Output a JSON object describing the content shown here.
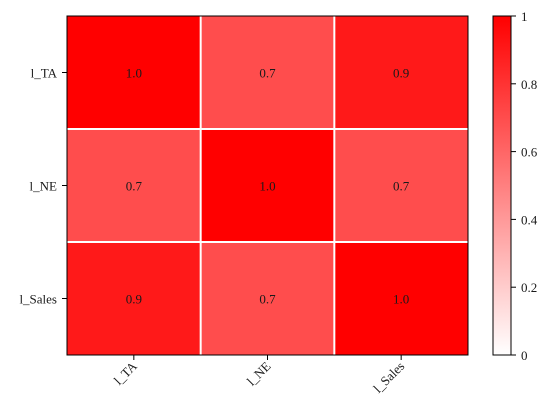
{
  "chart_data": {
    "type": "heatmap",
    "title": "",
    "xlabel": "",
    "ylabel": "",
    "x_categories": [
      "l_TA",
      "l_NE",
      "l_Sales"
    ],
    "y_categories": [
      "l_TA",
      "l_NE",
      "l_Sales"
    ],
    "values": [
      [
        1.0,
        0.7,
        0.9
      ],
      [
        0.7,
        1.0,
        0.7
      ],
      [
        0.9,
        0.7,
        1.0
      ]
    ],
    "cell_labels": [
      [
        "1.0",
        "0.7",
        "0.9"
      ],
      [
        "0.7",
        "1.0",
        "0.7"
      ],
      [
        "0.9",
        "0.7",
        "1.0"
      ]
    ],
    "colorbar": {
      "range": [
        0,
        1
      ],
      "ticks": [
        "0",
        "0.2",
        "0.4",
        "0.6",
        "0.8",
        "1"
      ],
      "low_color": "#ffffff",
      "high_color": "#ff0000"
    },
    "grid_color": "#ffffff",
    "x_tick_rotation_deg": 45
  }
}
